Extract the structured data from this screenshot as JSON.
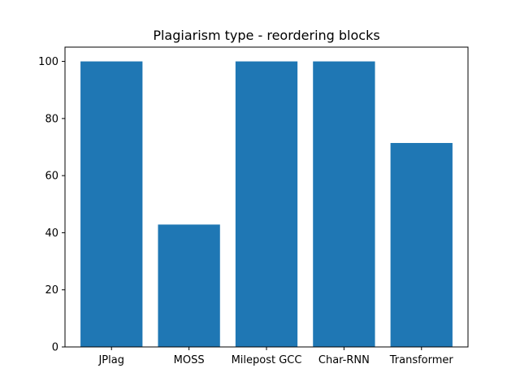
{
  "chart_data": {
    "type": "bar",
    "title": "Plagiarism type - reordering blocks",
    "xlabel": "",
    "ylabel": "",
    "categories": [
      "JPlag",
      "MOSS",
      "Milepost GCC",
      "Char-RNN",
      "Transformer"
    ],
    "values": [
      100,
      42.86,
      100,
      100,
      71.43
    ],
    "ylim": [
      0,
      105
    ],
    "yticks": [
      0,
      20,
      40,
      60,
      80,
      100
    ],
    "grid": false,
    "bar_color": "#1f77b4"
  }
}
